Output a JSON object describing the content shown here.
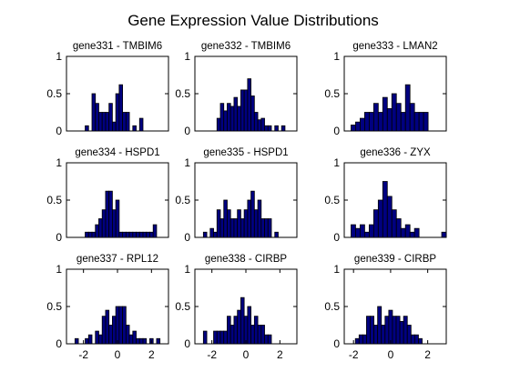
{
  "figure": {
    "title": "Gene Expression Value Distributions",
    "background": "#ffffff",
    "bar_color": "#000080",
    "edge_color": "#000000"
  },
  "chart_data": [
    {
      "type": "bar",
      "title": "gene331 - TMBIM6",
      "xlim": [
        -3,
        3
      ],
      "ylim": [
        0,
        1
      ],
      "bin_width": 0.2,
      "x": [
        -1.8,
        -1.4,
        -1.2,
        -1.0,
        -0.8,
        -0.6,
        -0.4,
        -0.2,
        0.0,
        0.2,
        0.4,
        0.6,
        1.0,
        1.4
      ],
      "values": [
        0.07,
        0.5,
        0.37,
        0.25,
        0.25,
        0.25,
        0.37,
        0.12,
        0.5,
        0.62,
        0.25,
        0.25,
        0.07,
        0.17
      ],
      "yticks": [
        0,
        0.5,
        1
      ],
      "xticks": [],
      "show_xtick_labels": false
    },
    {
      "type": "bar",
      "title": "gene332 - TMBIM6",
      "xlim": [
        -3,
        3
      ],
      "ylim": [
        0,
        1
      ],
      "bin_width": 0.2,
      "x": [
        -1.6,
        -1.4,
        -1.2,
        -1.0,
        -0.8,
        -0.6,
        -0.4,
        -0.2,
        0.0,
        0.2,
        0.4,
        0.6,
        0.8,
        1.0,
        1.2,
        1.4,
        1.8,
        2.2
      ],
      "values": [
        0.17,
        0.37,
        0.27,
        0.37,
        0.33,
        0.45,
        0.33,
        0.55,
        0.55,
        0.7,
        0.47,
        0.25,
        0.15,
        0.17,
        0.07,
        0.07,
        0.07,
        0.07
      ],
      "yticks": [
        0,
        0.5,
        1
      ],
      "xticks": [],
      "show_xtick_labels": false
    },
    {
      "type": "bar",
      "title": "gene333 - LMAN2",
      "xlim": [
        -2,
        2.5
      ],
      "ylim": [
        0,
        1
      ],
      "bin_width": 0.2,
      "x": [
        -1.6,
        -1.4,
        -1.2,
        -1.0,
        -0.8,
        -0.6,
        -0.4,
        -0.2,
        0.0,
        0.2,
        0.4,
        0.6,
        0.8,
        1.0,
        1.2,
        1.4,
        1.6
      ],
      "values": [
        0.08,
        0.12,
        0.17,
        0.25,
        0.25,
        0.37,
        0.25,
        0.45,
        0.3,
        0.5,
        0.37,
        0.25,
        0.62,
        0.37,
        0.25,
        0.25,
        0.25
      ],
      "yticks": [
        0,
        0.5,
        1
      ],
      "xticks": [],
      "show_xtick_labels": false
    },
    {
      "type": "bar",
      "title": "gene334 - HSPD1",
      "xlim": [
        -3,
        3
      ],
      "ylim": [
        0,
        1
      ],
      "bin_width": 0.2,
      "x": [
        -1.8,
        -1.6,
        -1.4,
        -1.2,
        -1.0,
        -0.8,
        -0.6,
        -0.4,
        -0.2,
        0.0,
        0.2,
        0.4,
        0.6,
        0.8,
        1.0,
        1.2,
        1.4,
        1.6,
        1.8,
        2.0,
        2.2
      ],
      "values": [
        0.07,
        0.07,
        0.07,
        0.17,
        0.25,
        0.37,
        0.62,
        0.62,
        0.37,
        0.5,
        0.07,
        0.07,
        0.07,
        0.07,
        0.07,
        0.07,
        0.07,
        0.07,
        0.07,
        0.07,
        0.17
      ],
      "yticks": [
        0,
        0.5,
        1
      ],
      "xticks": [],
      "show_xtick_labels": false
    },
    {
      "type": "bar",
      "title": "gene335 - HSPD1",
      "xlim": [
        -3,
        3
      ],
      "ylim": [
        0,
        1
      ],
      "bin_width": 0.2,
      "x": [
        -2.4,
        -2.0,
        -1.8,
        -1.6,
        -1.4,
        -1.2,
        -1.0,
        -0.8,
        -0.6,
        -0.4,
        -0.2,
        0.0,
        0.2,
        0.4,
        0.6,
        0.8,
        1.0,
        1.2,
        1.4,
        1.8
      ],
      "values": [
        0.07,
        0.12,
        0.07,
        0.37,
        0.25,
        0.5,
        0.37,
        0.25,
        0.25,
        0.37,
        0.25,
        0.37,
        0.5,
        0.62,
        0.37,
        0.5,
        0.25,
        0.25,
        0.25,
        0.07
      ],
      "yticks": [
        0,
        0.5,
        1
      ],
      "xticks": [],
      "show_xtick_labels": false
    },
    {
      "type": "bar",
      "title": "gene336 - ZYX",
      "xlim": [
        -2,
        2.5
      ],
      "ylim": [
        0,
        1
      ],
      "bin_width": 0.2,
      "x": [
        -1.6,
        -1.4,
        -1.2,
        -1.0,
        -0.8,
        -0.6,
        -0.4,
        -0.2,
        0.0,
        0.2,
        0.4,
        0.6,
        0.8,
        1.0,
        1.2,
        2.4
      ],
      "values": [
        0.17,
        0.12,
        0.17,
        0.07,
        0.17,
        0.37,
        0.5,
        0.75,
        0.55,
        0.37,
        0.25,
        0.12,
        0.17,
        0.07,
        0.12,
        0.07
      ],
      "yticks": [
        0,
        0.5,
        1
      ],
      "xticks": [],
      "show_xtick_labels": false
    },
    {
      "type": "bar",
      "title": "gene337 - RPL12",
      "xlim": [
        -3,
        3
      ],
      "ylim": [
        0,
        1
      ],
      "bin_width": 0.2,
      "x": [
        -2.4,
        -1.8,
        -1.6,
        -1.2,
        -1.0,
        -0.8,
        -0.6,
        -0.4,
        -0.2,
        0.0,
        0.2,
        0.4,
        0.6,
        0.8,
        1.0,
        1.2,
        1.4,
        1.6,
        2.0,
        2.4
      ],
      "values": [
        0.07,
        0.07,
        0.12,
        0.17,
        0.12,
        0.37,
        0.45,
        0.25,
        0.37,
        0.5,
        0.5,
        0.5,
        0.25,
        0.12,
        0.17,
        0.07,
        0.07,
        0.07,
        0.07,
        0.07
      ],
      "yticks": [
        0,
        0.5,
        1
      ],
      "xticks": [
        -2,
        0,
        2
      ],
      "show_xtick_labels": true
    },
    {
      "type": "bar",
      "title": "gene338 - CIRBP",
      "xlim": [
        -3,
        3
      ],
      "ylim": [
        0,
        1
      ],
      "bin_width": 0.2,
      "x": [
        -2.4,
        -1.8,
        -1.6,
        -1.4,
        -1.2,
        -1.0,
        -0.8,
        -0.6,
        -0.4,
        -0.2,
        0.0,
        0.2,
        0.4,
        0.6,
        0.8,
        1.0,
        1.2,
        1.4
      ],
      "values": [
        0.17,
        0.17,
        0.17,
        0.17,
        0.17,
        0.37,
        0.25,
        0.37,
        0.45,
        0.62,
        0.37,
        0.5,
        0.25,
        0.37,
        0.25,
        0.25,
        0.12,
        0.12
      ],
      "yticks": [
        0,
        0.5,
        1
      ],
      "xticks": [
        -2,
        0,
        2
      ],
      "show_xtick_labels": true
    },
    {
      "type": "bar",
      "title": "gene339 - CIRBP",
      "xlim": [
        -2.5,
        3
      ],
      "ylim": [
        0,
        1
      ],
      "bin_width": 0.2,
      "x": [
        -1.8,
        -1.6,
        -1.4,
        -1.2,
        -1.0,
        -0.8,
        -0.6,
        -0.4,
        -0.2,
        0.0,
        0.2,
        0.4,
        0.6,
        0.8,
        1.0,
        1.2,
        1.4,
        1.6
      ],
      "values": [
        0.07,
        0.12,
        0.12,
        0.37,
        0.37,
        0.25,
        0.5,
        0.25,
        0.37,
        0.45,
        0.37,
        0.37,
        0.3,
        0.37,
        0.25,
        0.12,
        0.12,
        0.07
      ],
      "yticks": [
        0,
        0.5,
        1
      ],
      "xticks": [
        -2,
        0,
        2
      ],
      "show_xtick_labels": true
    }
  ]
}
